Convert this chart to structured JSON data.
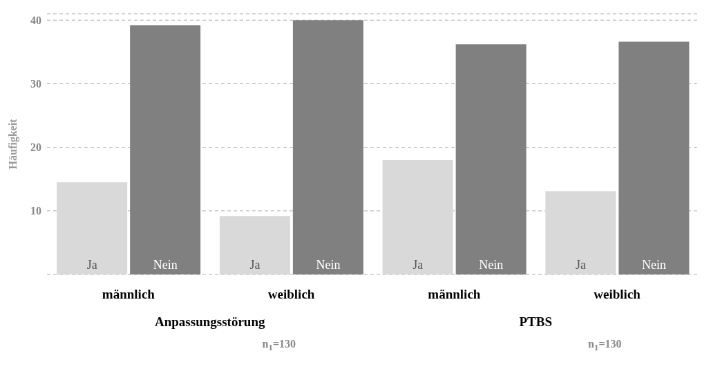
{
  "chart_data": {
    "type": "bar",
    "ylabel": "Häufigkeit",
    "categories": [
      "männlich",
      "weiblich",
      "männlich",
      "weiblich"
    ],
    "series": [
      {
        "name": "Ja",
        "color": "#d9d9d9",
        "values": [
          14.5,
          9.2,
          18,
          13.1
        ]
      },
      {
        "name": "Nein",
        "color": "#808080",
        "values": [
          39.2,
          40,
          36.2,
          36.6
        ]
      }
    ],
    "ylim": [
      0,
      41
    ],
    "yticks": [
      10,
      20,
      30,
      40
    ],
    "grid": "y",
    "legend": false,
    "annotations": [
      "Anpassungsstörung",
      "n$_{1}$=130",
      "PTBS",
      "n$_{1}$=130"
    ]
  }
}
